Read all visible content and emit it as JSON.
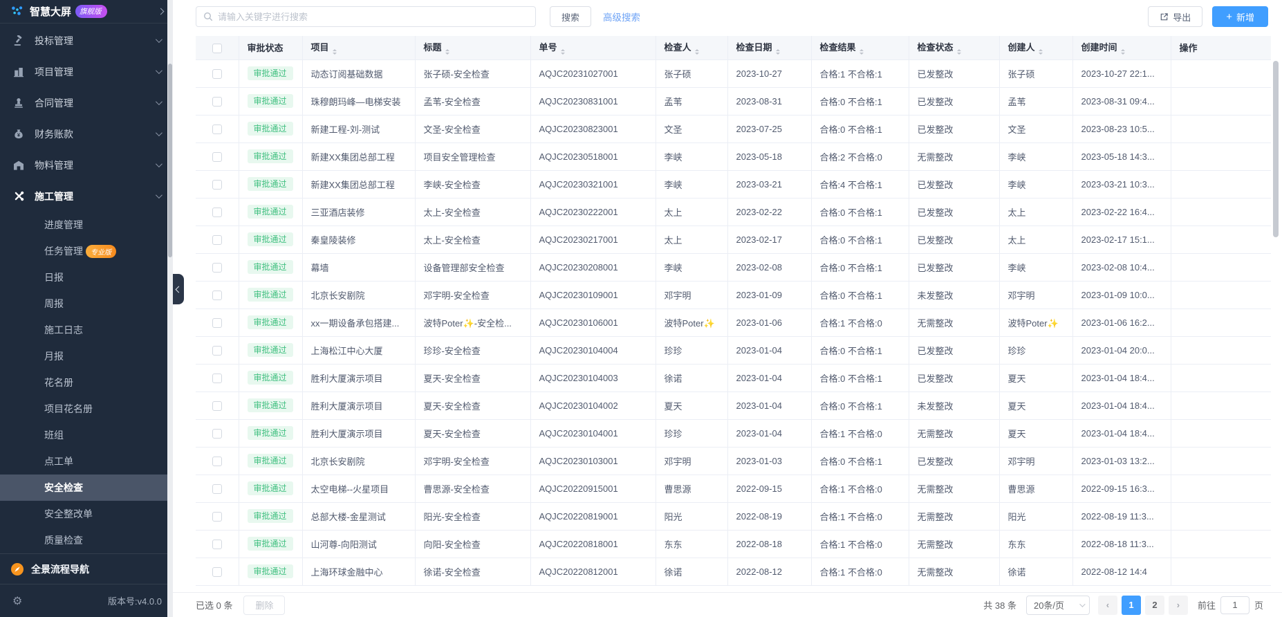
{
  "sidebar": {
    "brand": {
      "label": "智慧大屏",
      "badge": "旗舰版"
    },
    "menu": [
      {
        "label": "投标管理",
        "icon": "gavel-icon"
      },
      {
        "label": "项目管理",
        "icon": "building-icon"
      },
      {
        "label": "合同管理",
        "icon": "stamp-icon"
      },
      {
        "label": "财务账款",
        "icon": "money-bag-icon"
      },
      {
        "label": "物料管理",
        "icon": "warehouse-icon"
      },
      {
        "label": "施工管理",
        "icon": "tools-icon",
        "active": true,
        "expanded": true
      }
    ],
    "submenu": [
      {
        "label": "进度管理"
      },
      {
        "label": "任务管理",
        "badge": "专业版"
      },
      {
        "label": "日报"
      },
      {
        "label": "周报"
      },
      {
        "label": "施工日志"
      },
      {
        "label": "月报"
      },
      {
        "label": "花名册"
      },
      {
        "label": "项目花名册"
      },
      {
        "label": "班组"
      },
      {
        "label": "点工单"
      },
      {
        "label": "安全检查",
        "active": true
      },
      {
        "label": "安全整改单"
      },
      {
        "label": "质量检查"
      }
    ],
    "panorama_nav": "全景流程导航",
    "version": "版本号:v4.0.0"
  },
  "toolbar": {
    "search_placeholder": "请输入关键字进行搜索",
    "search_button": "搜索",
    "advanced_search_link": "高级搜索",
    "export_button": "导出",
    "add_button": "新增"
  },
  "table": {
    "columns": [
      {
        "label": "审批状态",
        "sortable": false
      },
      {
        "label": "项目",
        "sortable": true
      },
      {
        "label": "标题",
        "sortable": true
      },
      {
        "label": "单号",
        "sortable": true
      },
      {
        "label": "检查人",
        "sortable": true
      },
      {
        "label": "检查日期",
        "sortable": true
      },
      {
        "label": "检查结果",
        "sortable": true
      },
      {
        "label": "检查状态",
        "sortable": true
      },
      {
        "label": "创建人",
        "sortable": true
      },
      {
        "label": "创建时间",
        "sortable": true
      },
      {
        "label": "操作",
        "sortable": false
      }
    ],
    "rows": [
      {
        "status": "审批通过",
        "project": "动态订阅基础数据",
        "title": "张子硕-安全检查",
        "code": "AQJC20231027001",
        "inspector": "张子硕",
        "date": "2023-10-27",
        "result": "合格:1 不合格:1",
        "state": "已发整改",
        "creator": "张子硕",
        "created": "2023-10-27 22:1..."
      },
      {
        "status": "审批通过",
        "project": "珠穆朗玛峰—电梯安装",
        "title": "孟苇-安全检查",
        "code": "AQJC20230831001",
        "inspector": "孟苇",
        "date": "2023-08-31",
        "result": "合格:0 不合格:1",
        "state": "已发整改",
        "creator": "孟苇",
        "created": "2023-08-31 09:4..."
      },
      {
        "status": "审批通过",
        "project": "新建工程-刘-测试",
        "title": "文圣-安全检查",
        "code": "AQJC20230823001",
        "inspector": "文圣",
        "date": "2023-07-25",
        "result": "合格:0 不合格:1",
        "state": "已发整改",
        "creator": "文圣",
        "created": "2023-08-23 10:5..."
      },
      {
        "status": "审批通过",
        "project": "新建XX集团总部工程",
        "title": "项目安全管理检查",
        "code": "AQJC20230518001",
        "inspector": "李峡",
        "date": "2023-05-18",
        "result": "合格:2 不合格:0",
        "state": "无需整改",
        "creator": "李峡",
        "created": "2023-05-18 14:3..."
      },
      {
        "status": "审批通过",
        "project": "新建XX集团总部工程",
        "title": "李峡-安全检查",
        "code": "AQJC20230321001",
        "inspector": "李峡",
        "date": "2023-03-21",
        "result": "合格:4 不合格:1",
        "state": "已发整改",
        "creator": "李峡",
        "created": "2023-03-21 10:3..."
      },
      {
        "status": "审批通过",
        "project": "三亚酒店装修",
        "title": "太上-安全检查",
        "code": "AQJC20230222001",
        "inspector": "太上",
        "date": "2023-02-22",
        "result": "合格:0 不合格:1",
        "state": "已发整改",
        "creator": "太上",
        "created": "2023-02-22 16:4..."
      },
      {
        "status": "审批通过",
        "project": "秦皇陵装修",
        "title": "太上-安全检查",
        "code": "AQJC20230217001",
        "inspector": "太上",
        "date": "2023-02-17",
        "result": "合格:0 不合格:1",
        "state": "已发整改",
        "creator": "太上",
        "created": "2023-02-17 15:1..."
      },
      {
        "status": "审批通过",
        "project": "幕墙",
        "title": "设备管理部安全检查",
        "code": "AQJC20230208001",
        "inspector": "李峡",
        "date": "2023-02-08",
        "result": "合格:0 不合格:1",
        "state": "已发整改",
        "creator": "李峡",
        "created": "2023-02-08 10:4..."
      },
      {
        "status": "审批通过",
        "project": "北京长安剧院",
        "title": "邓宇明-安全检查",
        "code": "AQJC20230109001",
        "inspector": "邓宇明",
        "date": "2023-01-09",
        "result": "合格:0 不合格:1",
        "state": "未发整改",
        "creator": "邓宇明",
        "created": "2023-01-09 10:0..."
      },
      {
        "status": "审批通过",
        "project": "xx一期设备承包搭建...",
        "title": "波特Poter✨-安全检...",
        "code": "AQJC20230106001",
        "inspector": "波特Poter✨",
        "date": "2023-01-06",
        "result": "合格:1 不合格:0",
        "state": "无需整改",
        "creator": "波特Poter✨",
        "created": "2023-01-06 16:2..."
      },
      {
        "status": "审批通过",
        "project": "上海松江中心大厦",
        "title": "珍珍-安全检查",
        "code": "AQJC20230104004",
        "inspector": "珍珍",
        "date": "2023-01-04",
        "result": "合格:0 不合格:1",
        "state": "已发整改",
        "creator": "珍珍",
        "created": "2023-01-04 20:0..."
      },
      {
        "status": "审批通过",
        "project": "胜利大厦演示项目",
        "title": "夏天-安全检查",
        "code": "AQJC20230104003",
        "inspector": "徐诺",
        "date": "2023-01-04",
        "result": "合格:0 不合格:1",
        "state": "已发整改",
        "creator": "夏天",
        "created": "2023-01-04 18:4..."
      },
      {
        "status": "审批通过",
        "project": "胜利大厦演示项目",
        "title": "夏天-安全检查",
        "code": "AQJC20230104002",
        "inspector": "夏天",
        "date": "2023-01-04",
        "result": "合格:0 不合格:1",
        "state": "未发整改",
        "creator": "夏天",
        "created": "2023-01-04 18:4..."
      },
      {
        "status": "审批通过",
        "project": "胜利大厦演示项目",
        "title": "夏天-安全检查",
        "code": "AQJC20230104001",
        "inspector": "珍珍",
        "date": "2023-01-04",
        "result": "合格:1 不合格:0",
        "state": "无需整改",
        "creator": "夏天",
        "created": "2023-01-04 18:4..."
      },
      {
        "status": "审批通过",
        "project": "北京长安剧院",
        "title": "邓宇明-安全检查",
        "code": "AQJC20230103001",
        "inspector": "邓宇明",
        "date": "2023-01-03",
        "result": "合格:0 不合格:1",
        "state": "已发整改",
        "creator": "邓宇明",
        "created": "2023-01-03 13:2..."
      },
      {
        "status": "审批通过",
        "project": "太空电梯--火星项目",
        "title": "曹思源-安全检查",
        "code": "AQJC20220915001",
        "inspector": "曹思源",
        "date": "2022-09-15",
        "result": "合格:1 不合格:0",
        "state": "无需整改",
        "creator": "曹思源",
        "created": "2022-09-15 16:3..."
      },
      {
        "status": "审批通过",
        "project": "总部大楼-金星测试",
        "title": "阳光-安全检查",
        "code": "AQJC20220819001",
        "inspector": "阳光",
        "date": "2022-08-19",
        "result": "合格:1 不合格:0",
        "state": "无需整改",
        "creator": "阳光",
        "created": "2022-08-19 11:3..."
      },
      {
        "status": "审批通过",
        "project": "山河尊-向阳测试",
        "title": "向阳-安全检查",
        "code": "AQJC20220818001",
        "inspector": "东东",
        "date": "2022-08-18",
        "result": "合格:1 不合格:0",
        "state": "无需整改",
        "creator": "东东",
        "created": "2022-08-18 11:3..."
      },
      {
        "status": "审批通过",
        "project": "上海环球金融中心",
        "title": "徐诺-安全检查",
        "code": "AQJC20220812001",
        "inspector": "徐诺",
        "date": "2022-08-12",
        "result": "合格:1 不合格:0",
        "state": "无需整改",
        "creator": "徐诺",
        "created": "2022-08-12 14:4"
      }
    ]
  },
  "footer": {
    "selected_text": "已选 0 条",
    "delete_button": "删除",
    "total_text": "共 38 条",
    "page_size": "20条/页",
    "pages": [
      "1",
      "2"
    ],
    "active_page": "1",
    "goto_label": "前往",
    "goto_value": "1",
    "goto_suffix": "页"
  },
  "colors": {
    "sidebar_bg": "#1f2b3c",
    "sidebar_active_bg": "#4a5568",
    "primary_blue": "#409eff",
    "link_blue": "#6ea3f6",
    "badge_green_bg": "#e8f8ef",
    "badge_green_text": "#3fbf7f",
    "vip_badge_gradient": "#7b5bf5-#c74ff0",
    "pro_badge_gradient": "#fbae3c-#f68a1e",
    "header_bg": "#f5f7fa",
    "border": "#ebeef5"
  }
}
